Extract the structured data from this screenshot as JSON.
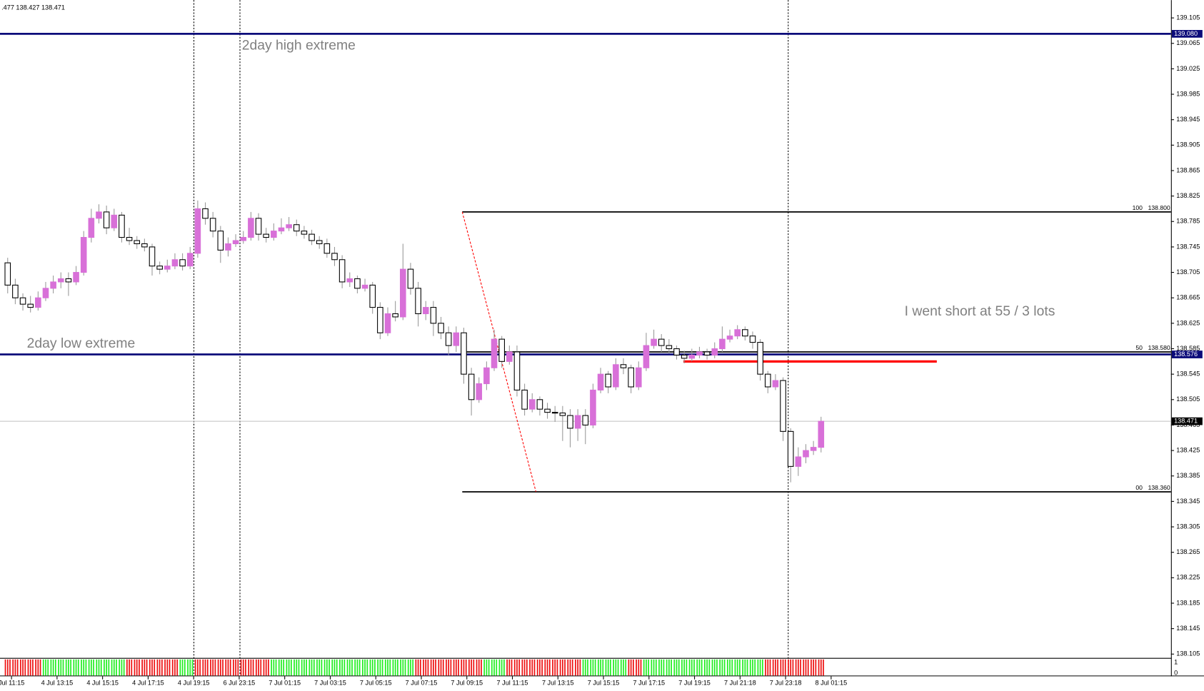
{
  "chart_data": {
    "type": "candlestick",
    "header_text": ".477 138.427 138.471",
    "ylim": [
      138.099,
      139.133
    ],
    "yticks": [
      {
        "value": 139.105,
        "label": "139.105"
      },
      {
        "value": 139.065,
        "label": "139.065"
      },
      {
        "value": 139.025,
        "label": "139.025"
      },
      {
        "value": 138.985,
        "label": "138.985"
      },
      {
        "value": 138.945,
        "label": "138.945"
      },
      {
        "value": 138.905,
        "label": "138.905"
      },
      {
        "value": 138.865,
        "label": "138.865"
      },
      {
        "value": 138.825,
        "label": "138.825"
      },
      {
        "value": 138.785,
        "label": "138.785"
      },
      {
        "value": 138.745,
        "label": "138.745"
      },
      {
        "value": 138.705,
        "label": "138.705"
      },
      {
        "value": 138.665,
        "label": "138.665"
      },
      {
        "value": 138.625,
        "label": "138.625"
      },
      {
        "value": 138.585,
        "label": "138.585"
      },
      {
        "value": 138.545,
        "label": "138.545"
      },
      {
        "value": 138.505,
        "label": "138.505"
      },
      {
        "value": 138.465,
        "label": "138.465"
      },
      {
        "value": 138.425,
        "label": "138.425"
      },
      {
        "value": 138.385,
        "label": "138.385"
      },
      {
        "value": 138.345,
        "label": "138.345"
      },
      {
        "value": 138.305,
        "label": "138.305"
      },
      {
        "value": 138.265,
        "label": "138.265"
      },
      {
        "value": 138.225,
        "label": "138.225"
      },
      {
        "value": 138.185,
        "label": "138.185"
      },
      {
        "value": 138.145,
        "label": "138.145"
      },
      {
        "value": 138.105,
        "label": "138.105"
      }
    ],
    "x_labels": [
      "Jul 11:15",
      "4 Jul 13:15",
      "4 Jul 15:15",
      "4 Jul 17:15",
      "4 Jul 19:15",
      "6 Jul 23:15",
      "7 Jul 01:15",
      "7 Jul 03:15",
      "7 Jul 05:15",
      "7 Jul 07:15",
      "7 Jul 09:15",
      "7 Jul 11:15",
      "7 Jul 13:15",
      "7 Jul 15:15",
      "7 Jul 17:15",
      "7 Jul 19:15",
      "7 Jul 21:18",
      "7 Jul 23:18",
      "8 Jul 01:15"
    ],
    "up_color": "#d870d8",
    "down_color": "#ffffff",
    "outline_color": "#000000",
    "candles": [
      [
        138.72,
        138.728,
        138.672,
        138.685
      ],
      [
        138.685,
        138.695,
        138.655,
        138.665
      ],
      [
        138.665,
        138.672,
        138.645,
        138.655
      ],
      [
        138.655,
        138.668,
        138.642,
        138.65
      ],
      [
        138.65,
        138.675,
        138.645,
        138.665
      ],
      [
        138.665,
        138.69,
        138.66,
        138.68
      ],
      [
        138.68,
        138.7,
        138.672,
        138.69
      ],
      [
        138.69,
        138.705,
        138.68,
        138.695
      ],
      [
        138.695,
        138.705,
        138.668,
        138.69
      ],
      [
        138.69,
        138.715,
        138.685,
        138.705
      ],
      [
        138.705,
        138.77,
        138.7,
        138.76
      ],
      [
        138.76,
        138.805,
        138.752,
        138.79
      ],
      [
        138.79,
        138.812,
        138.782,
        138.8
      ],
      [
        138.8,
        138.81,
        138.765,
        138.775
      ],
      [
        138.775,
        138.805,
        138.77,
        138.795
      ],
      [
        138.795,
        138.8,
        138.752,
        138.76
      ],
      [
        138.76,
        138.775,
        138.748,
        138.755
      ],
      [
        138.755,
        138.762,
        138.742,
        138.75
      ],
      [
        138.75,
        138.758,
        138.738,
        138.745
      ],
      [
        138.745,
        138.75,
        138.7,
        138.715
      ],
      [
        138.715,
        138.722,
        138.702,
        138.71
      ],
      [
        138.71,
        138.725,
        138.705,
        138.715
      ],
      [
        138.715,
        138.735,
        138.71,
        138.725
      ],
      [
        138.725,
        138.735,
        138.708,
        138.715
      ],
      [
        138.715,
        138.745,
        138.71,
        138.735
      ],
      [
        138.735,
        138.818,
        138.728,
        138.805
      ],
      [
        138.805,
        138.815,
        138.78,
        138.79
      ],
      [
        138.79,
        138.8,
        138.76,
        138.77
      ],
      [
        138.77,
        138.778,
        138.72,
        138.74
      ],
      [
        138.74,
        138.76,
        138.73,
        138.75
      ],
      [
        138.75,
        138.765,
        138.745,
        138.755
      ],
      [
        138.755,
        138.77,
        138.75,
        138.76
      ],
      [
        138.76,
        138.8,
        138.755,
        138.79
      ],
      [
        138.79,
        138.798,
        138.755,
        138.765
      ],
      [
        138.765,
        138.775,
        138.752,
        138.76
      ],
      [
        138.76,
        138.782,
        138.755,
        138.77
      ],
      [
        138.77,
        138.79,
        138.765,
        138.775
      ],
      [
        138.775,
        138.792,
        138.77,
        138.78
      ],
      [
        138.78,
        138.788,
        138.762,
        138.77
      ],
      [
        138.77,
        138.778,
        138.758,
        138.765
      ],
      [
        138.765,
        138.772,
        138.748,
        138.755
      ],
      [
        138.755,
        138.762,
        138.742,
        138.75
      ],
      [
        138.75,
        138.758,
        138.728,
        138.735
      ],
      [
        138.735,
        138.745,
        138.715,
        138.725
      ],
      [
        138.725,
        138.732,
        138.68,
        138.69
      ],
      [
        138.69,
        138.705,
        138.682,
        138.695
      ],
      [
        138.695,
        138.7,
        138.672,
        138.68
      ],
      [
        138.68,
        138.695,
        138.675,
        138.685
      ],
      [
        138.685,
        138.69,
        138.64,
        138.65
      ],
      [
        138.65,
        138.658,
        138.6,
        138.61
      ],
      [
        138.61,
        138.65,
        138.605,
        138.64
      ],
      [
        138.64,
        138.66,
        138.628,
        138.635
      ],
      [
        138.635,
        138.75,
        138.63,
        138.71
      ],
      [
        138.71,
        138.72,
        138.67,
        138.68
      ],
      [
        138.68,
        138.69,
        138.62,
        138.64
      ],
      [
        138.64,
        138.66,
        138.63,
        138.65
      ],
      [
        138.65,
        138.66,
        138.605,
        138.625
      ],
      [
        138.625,
        138.635,
        138.6,
        138.61
      ],
      [
        138.61,
        138.62,
        138.575,
        138.59
      ],
      [
        138.59,
        138.62,
        138.58,
        138.61
      ],
      [
        138.61,
        138.618,
        138.53,
        138.545
      ],
      [
        138.545,
        138.555,
        138.48,
        138.505
      ],
      [
        138.505,
        138.54,
        138.5,
        138.53
      ],
      [
        138.53,
        138.565,
        138.52,
        138.555
      ],
      [
        138.555,
        138.615,
        138.55,
        138.6
      ],
      [
        138.6,
        138.605,
        138.555,
        138.565
      ],
      [
        138.565,
        138.59,
        138.56,
        138.58
      ],
      [
        138.58,
        138.59,
        138.51,
        138.52
      ],
      [
        138.52,
        138.53,
        138.48,
        138.49
      ],
      [
        138.49,
        138.515,
        138.485,
        138.505
      ],
      [
        138.505,
        138.51,
        138.48,
        138.49
      ],
      [
        138.49,
        138.5,
        138.475,
        138.485
      ],
      [
        138.485,
        138.495,
        138.47,
        138.484
      ],
      [
        138.484,
        138.495,
        138.44,
        138.48
      ],
      [
        138.48,
        138.49,
        138.43,
        138.46
      ],
      [
        138.46,
        138.49,
        138.44,
        138.48
      ],
      [
        138.48,
        138.49,
        138.435,
        138.465
      ],
      [
        138.465,
        138.53,
        138.46,
        138.52
      ],
      [
        138.52,
        138.555,
        138.515,
        138.545
      ],
      [
        138.545,
        138.55,
        138.515,
        138.525
      ],
      [
        138.525,
        138.57,
        138.52,
        138.56
      ],
      [
        138.56,
        138.57,
        138.545,
        138.555
      ],
      [
        138.555,
        138.56,
        138.515,
        138.525
      ],
      [
        138.525,
        138.565,
        138.52,
        138.555
      ],
      [
        138.555,
        138.61,
        138.55,
        138.59
      ],
      [
        138.59,
        138.615,
        138.585,
        138.6
      ],
      [
        138.6,
        138.608,
        138.58,
        138.59
      ],
      [
        138.59,
        138.6,
        138.578,
        138.585
      ],
      [
        138.585,
        138.59,
        138.568,
        138.575
      ],
      [
        138.575,
        138.582,
        138.562,
        138.57
      ],
      [
        138.57,
        138.585,
        138.565,
        138.575
      ],
      [
        138.575,
        138.588,
        138.57,
        138.58
      ],
      [
        138.58,
        138.585,
        138.568,
        138.575
      ],
      [
        138.575,
        138.595,
        138.57,
        138.585
      ],
      [
        138.585,
        138.62,
        138.58,
        138.6
      ],
      [
        138.6,
        138.615,
        138.595,
        138.605
      ],
      [
        138.605,
        138.622,
        138.6,
        138.615
      ],
      [
        138.615,
        138.62,
        138.598,
        138.605
      ],
      [
        138.605,
        138.612,
        138.585,
        138.595
      ],
      [
        138.595,
        138.6,
        138.535,
        138.545
      ],
      [
        138.545,
        138.55,
        138.515,
        138.525
      ],
      [
        138.525,
        138.545,
        138.52,
        138.535
      ],
      [
        138.535,
        138.54,
        138.44,
        138.455
      ],
      [
        138.455,
        138.46,
        138.375,
        138.4
      ],
      [
        138.4,
        138.43,
        138.385,
        138.415
      ],
      [
        138.415,
        138.435,
        138.405,
        138.425
      ],
      [
        138.425,
        138.44,
        138.418,
        138.43
      ],
      [
        138.43,
        138.478,
        138.422,
        138.471
      ]
    ],
    "hlines": [
      {
        "name": "2day high extreme",
        "value": 139.08,
        "label": "139.080",
        "color": "#0c0c7a"
      },
      {
        "name": "2day low extreme",
        "value": 138.576,
        "label": "138.576",
        "color": "#0c0c7a"
      }
    ],
    "current_price": {
      "value": 138.471,
      "label": "138.471"
    },
    "fibo": [
      {
        "level": "100",
        "value": 138.8,
        "label": "138.800"
      },
      {
        "level": "50",
        "value": 138.58,
        "label": "138.580"
      },
      {
        "level": "00",
        "value": 138.36,
        "label": "138.360"
      }
    ],
    "entry_line": {
      "value": 138.565,
      "color": "#ff0000"
    },
    "annotation": "I went short at 55 / 3 lots",
    "indicator": {
      "yticks": [
        1,
        0
      ],
      "up_color": "#22ee22",
      "down_color": "#ee1111",
      "green_ranges": [
        [
          5,
          15
        ],
        [
          23,
          24
        ],
        [
          35,
          53
        ],
        [
          63,
          65
        ],
        [
          76,
          81
        ],
        [
          84,
          99
        ]
      ],
      "values": [
        1,
        1,
        1,
        1,
        1,
        1,
        1,
        1,
        1,
        1,
        1,
        1,
        1,
        1,
        1,
        1,
        1,
        1,
        1,
        1,
        1,
        1,
        1,
        1,
        1,
        1,
        1,
        1,
        1,
        1,
        1,
        1,
        1,
        1,
        1,
        1,
        1,
        1,
        1,
        1,
        1,
        1,
        1,
        1,
        1,
        1,
        1,
        1,
        1,
        1,
        1,
        1,
        1,
        1,
        1,
        1,
        1,
        1,
        1,
        1,
        1,
        1,
        1,
        1,
        1,
        1,
        1,
        1,
        1,
        1,
        1,
        1,
        1,
        1,
        1,
        1,
        1,
        1,
        1,
        1,
        1,
        1,
        1,
        1,
        1,
        1,
        1,
        1,
        1,
        1,
        1,
        1,
        1,
        1,
        1,
        1,
        1,
        1,
        1,
        1,
        1,
        1,
        1,
        1,
        1,
        1,
        1,
        1
      ]
    }
  }
}
